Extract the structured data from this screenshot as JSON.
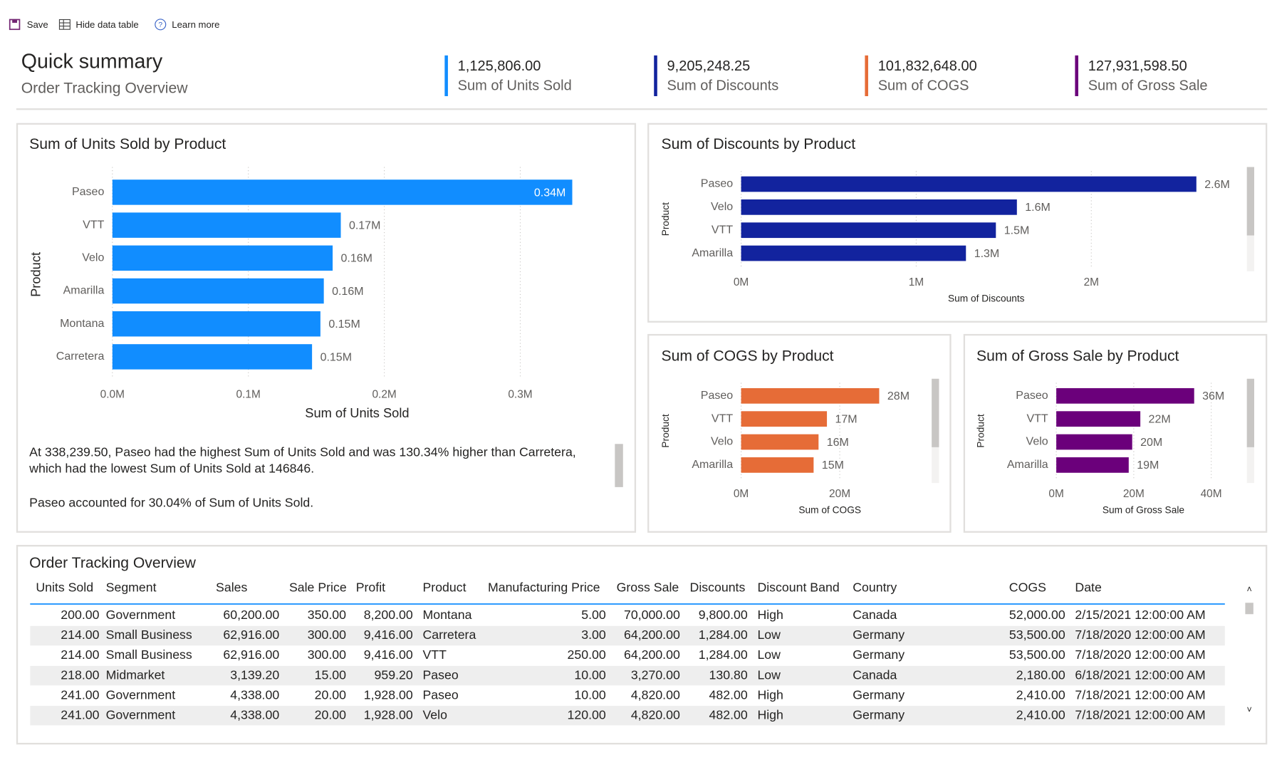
{
  "toolbar": [
    "Save",
    "Hide data table",
    "Learn more"
  ],
  "header": {
    "title": "Quick summary",
    "subtitle": "Order Tracking Overview"
  },
  "kpis": [
    {
      "value": "1,125,806.00",
      "label": "Sum of Units Sold",
      "color": "#118dff"
    },
    {
      "value": "9,205,248.25",
      "label": "Sum of Discounts",
      "color": "#12239e"
    },
    {
      "value": "101,832,648.00",
      "label": "Sum of COGS",
      "color": "#e66c37"
    },
    {
      "value": "127,931,598.50",
      "label": "Sum of Gross Sale",
      "color": "#6b007b"
    }
  ],
  "chart_data": [
    {
      "type": "bar",
      "title": "Sum of Units Sold by Product",
      "x_label": "Sum of Units Sold",
      "y_label": "Product",
      "categories": [
        "Paseo",
        "VTT",
        "Velo",
        "Amarilla",
        "Montana",
        "Carretera"
      ],
      "values": [
        338239.5,
        168000,
        162000,
        155500,
        153000,
        146846
      ],
      "value_labels": [
        "0.34M",
        "0.17M",
        "0.16M",
        "0.16M",
        "0.15M",
        "0.15M"
      ],
      "color": "#118dff",
      "xlim": [
        0,
        360000
      ],
      "xticks": [
        {
          "value": 0,
          "label": "0.0M"
        },
        {
          "value": 100000,
          "label": "0.1M"
        },
        {
          "value": 200000,
          "label": "0.2M"
        },
        {
          "value": 300000,
          "label": "0.3M"
        }
      ],
      "grid": true
    },
    {
      "type": "bar",
      "title": "Sum of Discounts by Product",
      "x_label": "Sum of Discounts",
      "y_label": "Product",
      "categories": [
        "Paseo",
        "Velo",
        "VTT",
        "Amarilla"
      ],
      "values": [
        2600000,
        1575000,
        1455000,
        1284000
      ],
      "value_labels": [
        "2.6M",
        "1.6M",
        "1.5M",
        "1.3M"
      ],
      "color": "#12239e",
      "xlim": [
        0,
        2800000
      ],
      "xticks": [
        {
          "value": 0,
          "label": "0M"
        },
        {
          "value": 1000000,
          "label": "1M"
        },
        {
          "value": 2000000,
          "label": "2M"
        }
      ],
      "grid": true
    },
    {
      "type": "bar",
      "title": "Sum of COGS by Product",
      "x_label": "Sum of COGS",
      "y_label": "Product",
      "categories": [
        "Paseo",
        "VTT",
        "Velo",
        "Amarilla"
      ],
      "values": [
        28000000,
        17400000,
        15700000,
        14700000
      ],
      "value_labels": [
        "28M",
        "17M",
        "16M",
        "15M"
      ],
      "color": "#e66c37",
      "xlim": [
        0,
        36000000
      ],
      "xticks": [
        {
          "value": 0,
          "label": "0M"
        },
        {
          "value": 20000000,
          "label": "20M"
        }
      ],
      "grid": true
    },
    {
      "type": "bar",
      "title": "Sum of Gross Sale by Product",
      "x_label": "Sum of Gross Sale",
      "y_label": "Product",
      "categories": [
        "Paseo",
        "VTT",
        "Velo",
        "Amarilla"
      ],
      "values": [
        35600000,
        21700000,
        19600000,
        18700000
      ],
      "value_labels": [
        "36M",
        "22M",
        "20M",
        "19M"
      ],
      "color": "#6b007b",
      "xlim": [
        0,
        45000000
      ],
      "xticks": [
        {
          "value": 0,
          "label": "0M"
        },
        {
          "value": 20000000,
          "label": "20M"
        },
        {
          "value": 40000000,
          "label": "40M"
        }
      ],
      "grid": true
    }
  ],
  "narrative": [
    "At 338,239.50, Paseo had the highest Sum of Units Sold and was 130.34% higher than Carretera, which had the lowest Sum of Units Sold at 146846.",
    "Paseo accounted for 30.04% of Sum of Units Sold."
  ],
  "table": {
    "title": "Order Tracking Overview",
    "columns": [
      "Units Sold",
      "Segment",
      "Sales",
      "Sale Price",
      "Profit",
      "Product",
      "Manufacturing Price",
      "Gross Sale",
      "Discounts",
      "Discount Band",
      "Country",
      "COGS",
      "Date"
    ],
    "rows": [
      [
        "200.00",
        "Government",
        "60,200.00",
        "350.00",
        "8,200.00",
        "Montana",
        "5.00",
        "70,000.00",
        "9,800.00",
        "High",
        "Canada",
        "52,000.00",
        "2/15/2021 12:00:00 AM"
      ],
      [
        "214.00",
        "Small Business",
        "62,916.00",
        "300.00",
        "9,416.00",
        "Carretera",
        "3.00",
        "64,200.00",
        "1,284.00",
        "Low",
        "Germany",
        "53,500.00",
        "7/18/2020 12:00:00 AM"
      ],
      [
        "214.00",
        "Small Business",
        "62,916.00",
        "300.00",
        "9,416.00",
        "VTT",
        "250.00",
        "64,200.00",
        "1,284.00",
        "Low",
        "Germany",
        "53,500.00",
        "7/18/2020 12:00:00 AM"
      ],
      [
        "218.00",
        "Midmarket",
        "3,139.20",
        "15.00",
        "959.20",
        "Paseo",
        "10.00",
        "3,270.00",
        "130.80",
        "Low",
        "Canada",
        "2,180.00",
        "6/18/2021 12:00:00 AM"
      ],
      [
        "241.00",
        "Government",
        "4,338.00",
        "20.00",
        "1,928.00",
        "Paseo",
        "10.00",
        "4,820.00",
        "482.00",
        "High",
        "Germany",
        "2,410.00",
        "7/18/2021 12:00:00 AM"
      ],
      [
        "241.00",
        "Government",
        "4,338.00",
        "20.00",
        "1,928.00",
        "Velo",
        "120.00",
        "4,820.00",
        "482.00",
        "High",
        "Germany",
        "2,410.00",
        "7/18/2021 12:00:00 AM"
      ]
    ]
  }
}
